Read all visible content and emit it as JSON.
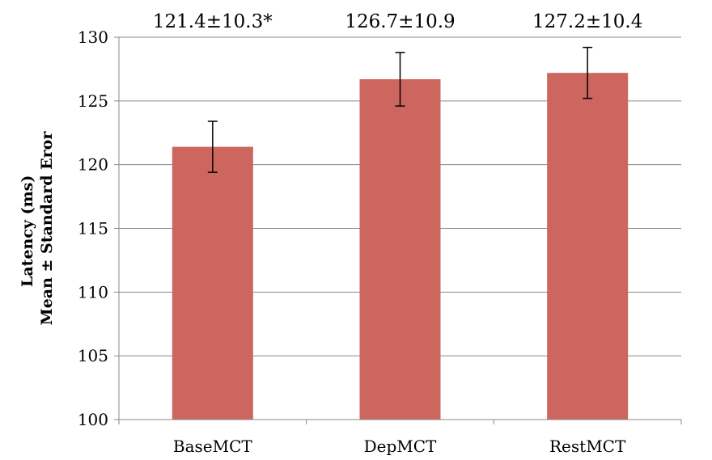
{
  "chart_data": {
    "type": "bar",
    "categories": [
      "BaseMCT",
      "DepMCT",
      "RestMCT"
    ],
    "values": [
      121.4,
      126.7,
      127.2
    ],
    "error": [
      2.0,
      2.1,
      2.0
    ],
    "data_labels": [
      "121.4±10.3*",
      "126.7±10.9",
      "127.2±10.4"
    ],
    "title": "",
    "xlabel": "",
    "ylabel_lines": [
      "Latency (ms)",
      "Mean ± Standard Eror"
    ],
    "ylim": [
      100,
      130
    ],
    "yticks": [
      100,
      105,
      110,
      115,
      120,
      125,
      130
    ],
    "grid": true,
    "legend": "none",
    "bar_color": "#cd665e"
  }
}
